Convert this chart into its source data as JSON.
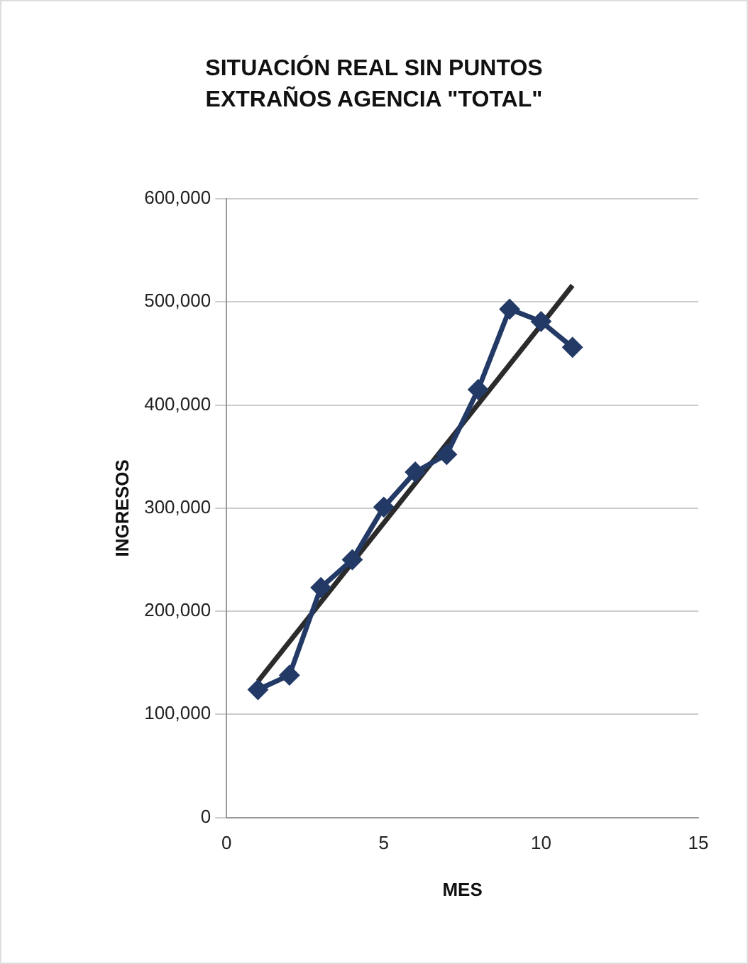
{
  "chart_data": {
    "type": "line",
    "title": "SITUACIÓN REAL SIN PUNTOS EXTRAÑOS AGENCIA \"TOTAL\"",
    "xlabel": "MES",
    "ylabel": "INGRESOS",
    "x": [
      1,
      2,
      3,
      4,
      5,
      6,
      7,
      8,
      9,
      10,
      11
    ],
    "series": [
      {
        "color": "#233a66",
        "marker": "diamond",
        "values": [
          124000,
          138000,
          223000,
          250000,
          301000,
          335000,
          352000,
          415000,
          493000,
          481000,
          456000
        ]
      },
      {
        "type": "line",
        "color": "#2b2b2b",
        "marker": "none",
        "x": [
          1,
          11
        ],
        "values": [
          132000,
          516000
        ]
      }
    ],
    "xlim": [
      0,
      15
    ],
    "xticks": [
      0,
      5,
      10,
      15
    ],
    "ylim": [
      0,
      600000
    ],
    "yticks": [
      0,
      {
        "value": 100000,
        "label": "100,000"
      },
      {
        "value": 200000,
        "label": "200,000"
      },
      {
        "value": 300000,
        "label": "300,000"
      },
      {
        "value": 400000,
        "label": "400,000"
      },
      {
        "value": 500000,
        "label": "500,000"
      },
      {
        "value": 600000,
        "label": "600,000"
      }
    ],
    "grid": "y",
    "legend": false
  }
}
